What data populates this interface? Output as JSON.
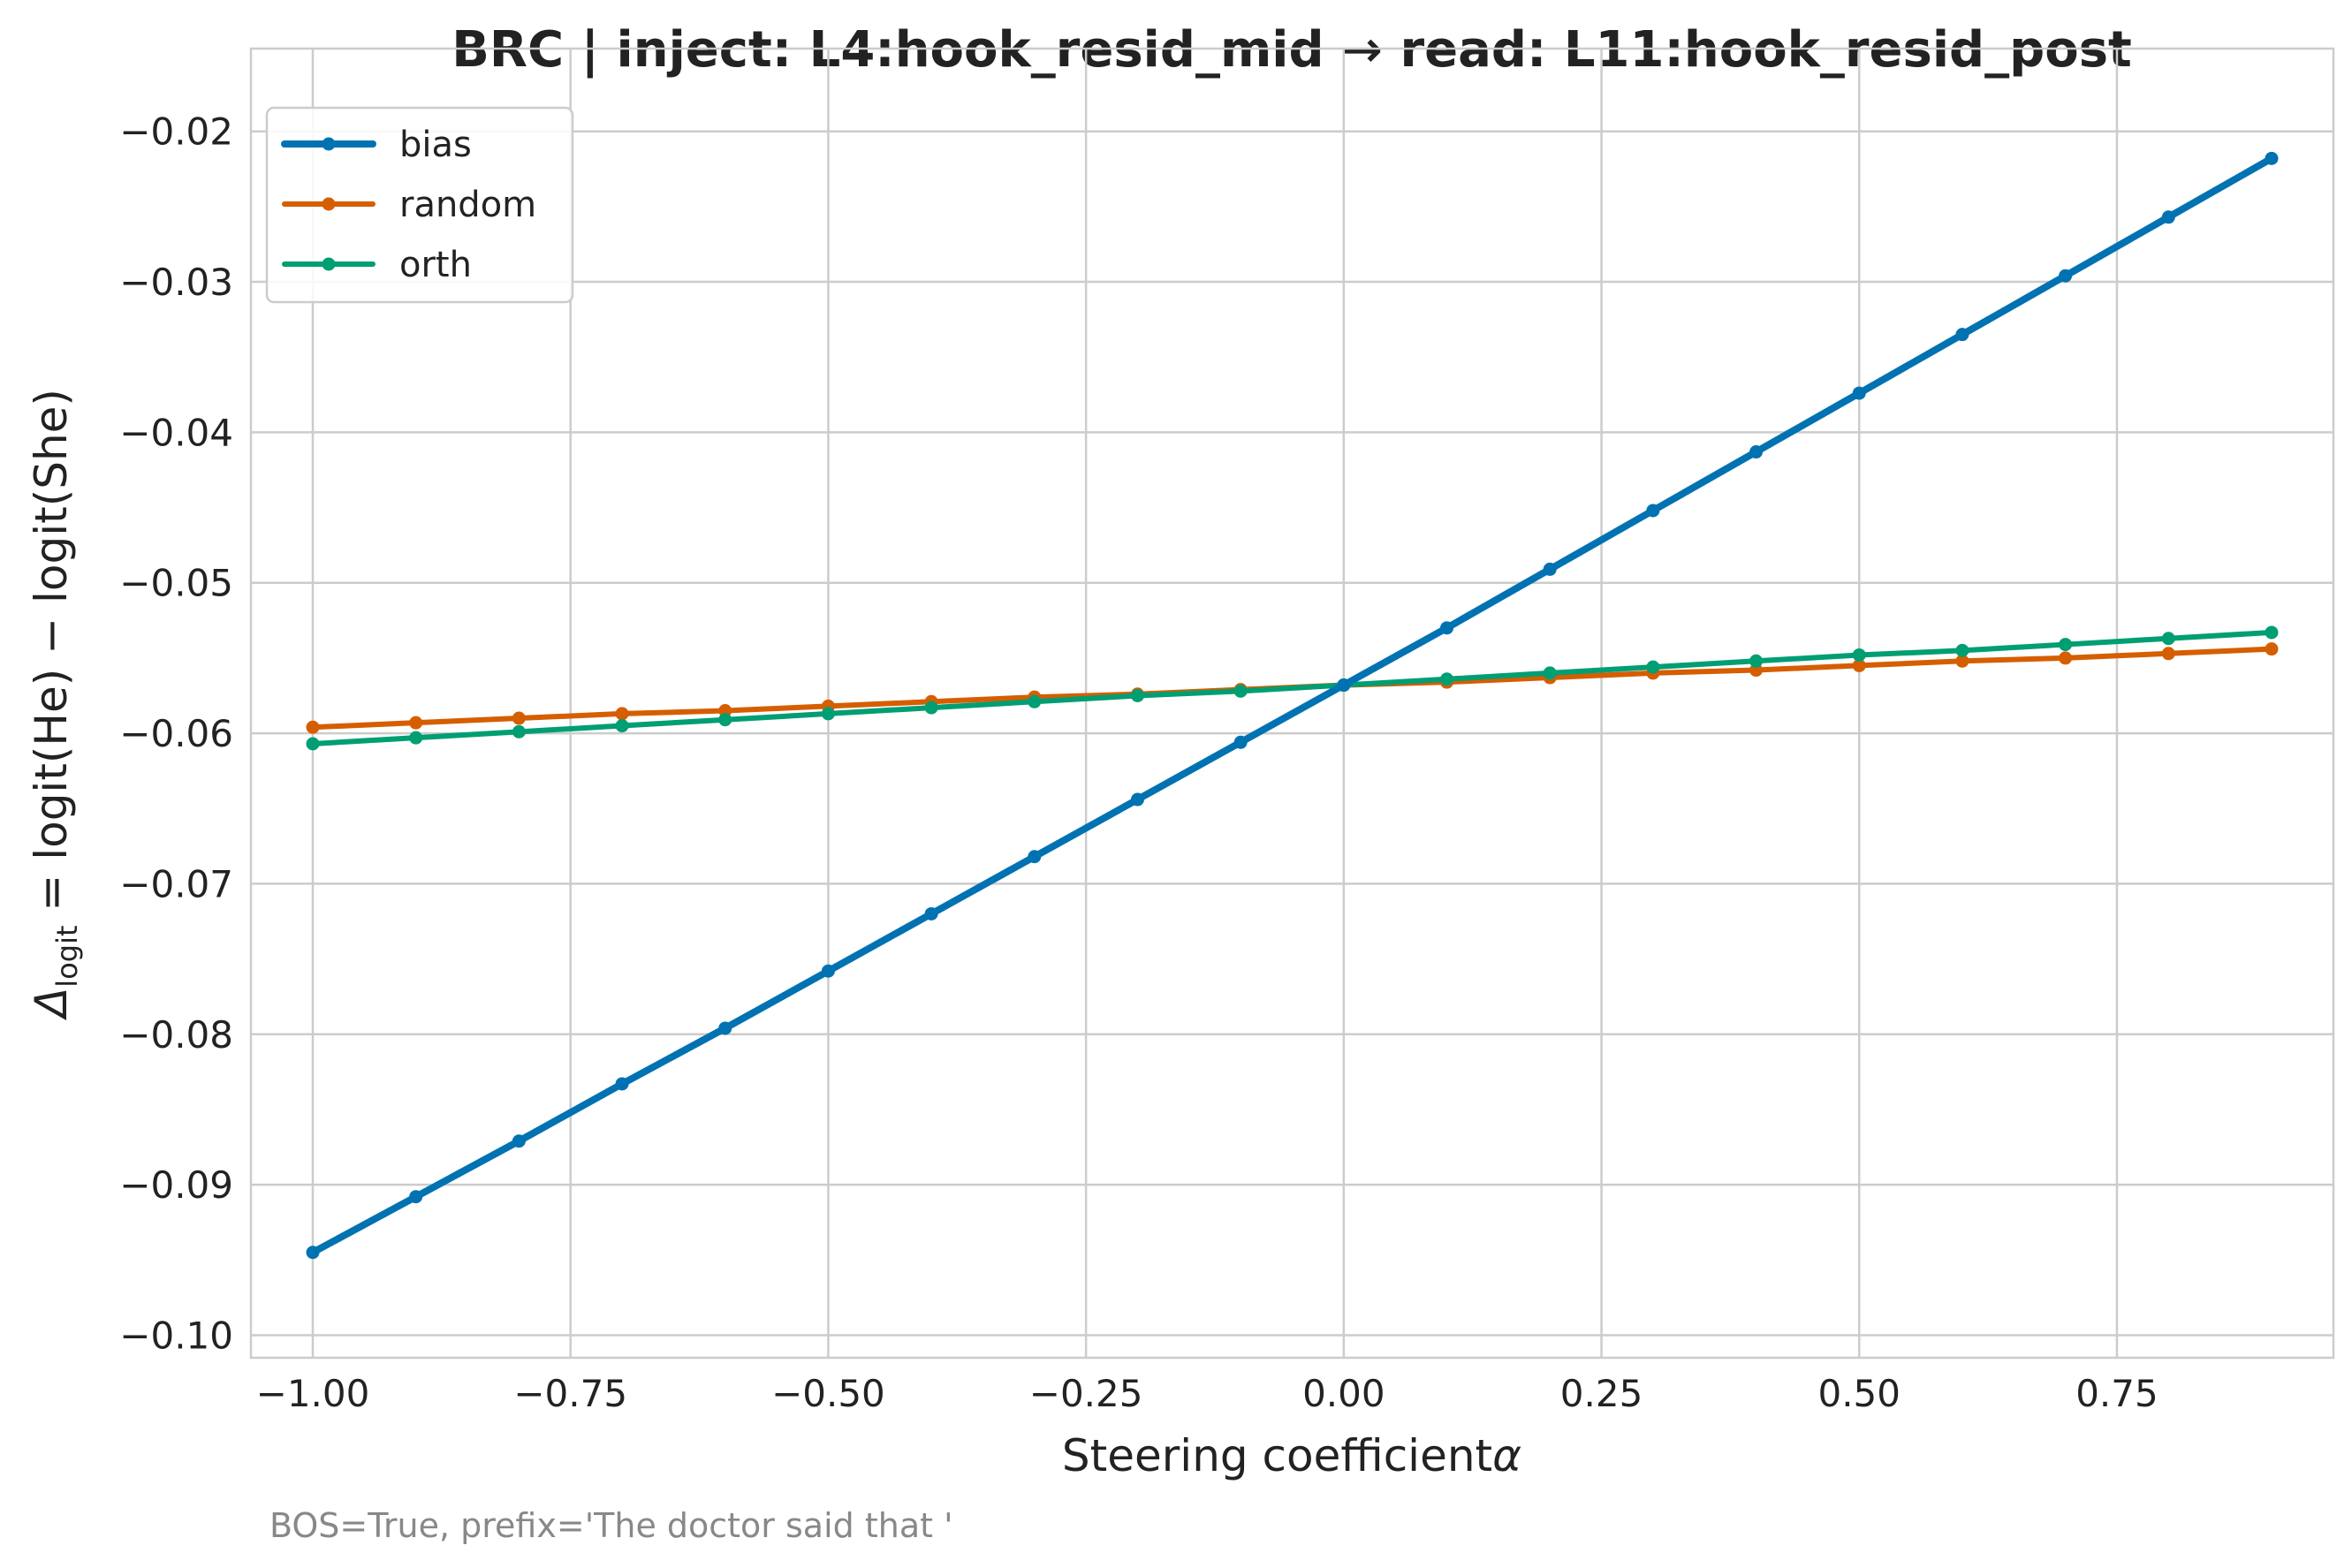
{
  "chart_data": {
    "type": "line",
    "title": "BRC | inject: L4:hook_resid_mid → read: L11:hook_resid_post",
    "xlabel": "Steering coefficient",
    "xlabel_symbol": "α",
    "ylabel": {
      "delta": "Δ",
      "subscript": "logit",
      "rest": " = logit(He) − logit(She)"
    },
    "caption": "BOS=True, prefix='The doctor said that '",
    "xlim": [
      -1.06,
      0.96
    ],
    "ylim": [
      -0.1015,
      -0.0145
    ],
    "xticks": [
      -1.0,
      -0.75,
      -0.5,
      -0.25,
      0.0,
      0.25,
      0.5,
      0.75
    ],
    "xtick_labels": [
      "−1.00",
      "−0.75",
      "−0.50",
      "−0.25",
      "0.00",
      "0.25",
      "0.50",
      "0.75"
    ],
    "yticks": [
      -0.1,
      -0.09,
      -0.08,
      -0.07,
      -0.06,
      -0.05,
      -0.04,
      -0.03,
      -0.02
    ],
    "ytick_labels": [
      "−0.10",
      "−0.09",
      "−0.08",
      "−0.07",
      "−0.06",
      "−0.05",
      "−0.04",
      "−0.03",
      "−0.02"
    ],
    "grid": true,
    "legend_position": "top-left",
    "x": [
      -1.0,
      -0.9,
      -0.8,
      -0.7,
      -0.6,
      -0.5,
      -0.4,
      -0.3,
      -0.2,
      -0.1,
      0.0,
      0.1,
      0.2,
      0.3,
      0.4,
      0.5,
      0.6,
      0.7,
      0.8,
      0.9
    ],
    "series": [
      {
        "name": "bias",
        "color": "#0072b2",
        "values": [
          -0.0945,
          -0.0908,
          -0.0871,
          -0.0833,
          -0.0796,
          -0.0758,
          -0.072,
          -0.0682,
          -0.0644,
          -0.0606,
          -0.0568,
          -0.053,
          -0.0491,
          -0.0452,
          -0.0413,
          -0.0374,
          -0.0335,
          -0.0296,
          -0.0257,
          -0.0218
        ]
      },
      {
        "name": "random",
        "color": "#d55e00",
        "values": [
          -0.0596,
          -0.0593,
          -0.059,
          -0.0587,
          -0.0585,
          -0.0582,
          -0.0579,
          -0.0576,
          -0.0574,
          -0.0571,
          -0.0568,
          -0.0566,
          -0.0563,
          -0.056,
          -0.0558,
          -0.0555,
          -0.0552,
          -0.055,
          -0.0547,
          -0.0544
        ]
      },
      {
        "name": "orth",
        "color": "#009e73",
        "values": [
          -0.0607,
          -0.0603,
          -0.0599,
          -0.0595,
          -0.0591,
          -0.0587,
          -0.0583,
          -0.0579,
          -0.0575,
          -0.0572,
          -0.0568,
          -0.0564,
          -0.056,
          -0.0556,
          -0.0552,
          -0.0548,
          -0.0545,
          -0.0541,
          -0.0537,
          -0.0533
        ]
      }
    ]
  }
}
